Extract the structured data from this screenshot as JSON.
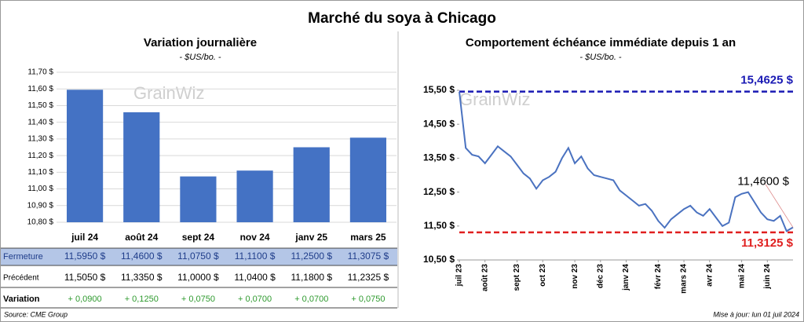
{
  "title": "Marché du soya à Chicago",
  "watermark": "GrainWiz",
  "chart_data": [
    {
      "type": "bar",
      "title": "Variation journalière",
      "subtitle": "- $US/bo. -",
      "categories": [
        "juil 24",
        "août 24",
        "sept 24",
        "nov 24",
        "janv 25",
        "mars 25"
      ],
      "values": [
        11.595,
        11.46,
        11.075,
        11.11,
        11.25,
        11.3075
      ],
      "color": "#4472c4",
      "ylim": [
        10.8,
        11.7
      ],
      "yticks": [
        {
          "value": 10.8,
          "label": "10,80 $"
        },
        {
          "value": 10.9,
          "label": "10,90 $"
        },
        {
          "value": 11.0,
          "label": "11,00 $"
        },
        {
          "value": 11.1,
          "label": "11,10 $"
        },
        {
          "value": 11.2,
          "label": "11,20 $"
        },
        {
          "value": 11.3,
          "label": "11,30 $"
        },
        {
          "value": 11.4,
          "label": "11,40 $"
        },
        {
          "value": 11.5,
          "label": "11,50 $"
        },
        {
          "value": 11.6,
          "label": "11,60 $"
        },
        {
          "value": 11.7,
          "label": "11,70 $"
        }
      ],
      "grid": true
    },
    {
      "type": "line",
      "title": "Comportement  échéance immédiate depuis 1 an",
      "subtitle": "- $US/bo. -",
      "values": [
        15.46,
        13.8,
        13.6,
        13.55,
        13.35,
        13.6,
        13.85,
        13.7,
        13.55,
        13.3,
        13.05,
        12.9,
        12.6,
        12.85,
        12.95,
        13.1,
        13.5,
        13.8,
        13.35,
        13.55,
        13.2,
        13.0,
        12.95,
        12.9,
        12.85,
        12.55,
        12.4,
        12.25,
        12.1,
        12.15,
        11.95,
        11.65,
        11.45,
        11.7,
        11.85,
        12.0,
        12.1,
        11.9,
        11.8,
        12.0,
        11.75,
        11.5,
        11.6,
        12.35,
        12.45,
        12.5,
        12.2,
        11.9,
        11.7,
        11.65,
        11.8,
        11.35,
        11.46
      ],
      "color": "#4a72c0",
      "xlim": [
        0,
        52
      ],
      "xticks": [
        {
          "value": 0,
          "label": "juil 23"
        },
        {
          "value": 4,
          "label": "août 23"
        },
        {
          "value": 9,
          "label": "sept 23"
        },
        {
          "value": 13,
          "label": "oct 23"
        },
        {
          "value": 18,
          "label": "nov 23"
        },
        {
          "value": 22,
          "label": "déc 23"
        },
        {
          "value": 26,
          "label": "janv 24"
        },
        {
          "value": 31,
          "label": "févr 24"
        },
        {
          "value": 35,
          "label": "mars 24"
        },
        {
          "value": 39,
          "label": "avr 24"
        },
        {
          "value": 44,
          "label": "mai 24"
        },
        {
          "value": 48,
          "label": "juin 24"
        }
      ],
      "ylim": [
        10.5,
        15.5
      ],
      "yticks": [
        {
          "value": 10.5,
          "label": "10,50 $"
        },
        {
          "value": 11.5,
          "label": "11,50 $"
        },
        {
          "value": 12.5,
          "label": "12,50 $"
        },
        {
          "value": 13.5,
          "label": "13,50 $"
        },
        {
          "value": 14.5,
          "label": "14,50 $"
        },
        {
          "value": 15.5,
          "label": "15,50 $"
        }
      ],
      "reference_lines": [
        {
          "value": 15.4625,
          "label": "15,4625 $",
          "color": "#1a1ab4"
        },
        {
          "value": 11.3125,
          "label": "11,3125 $",
          "color": "#e02020"
        }
      ],
      "last_label": {
        "value": 11.46,
        "label": "11,4600 $"
      }
    }
  ],
  "table": {
    "rows": [
      {
        "label": "Fermeture",
        "cells": [
          "11,5950 $",
          "11,4600 $",
          "11,0750 $",
          "11,1100 $",
          "11,2500 $",
          "11,3075 $"
        ]
      },
      {
        "label": "Précédent",
        "cells": [
          "11,5050 $",
          "11,3350 $",
          "11,0000 $",
          "11,0400 $",
          "11,1800 $",
          "11,2325 $"
        ]
      },
      {
        "label": "Variation",
        "cells": [
          "+ 0,0900",
          "+ 0,1250",
          "+ 0,0750",
          "+ 0,0700",
          "+ 0,0700",
          "+ 0,0750"
        ]
      }
    ]
  },
  "footer": {
    "source": "Source: CME Group",
    "updated": "Mise à jour: lun 01 juil 2024"
  }
}
